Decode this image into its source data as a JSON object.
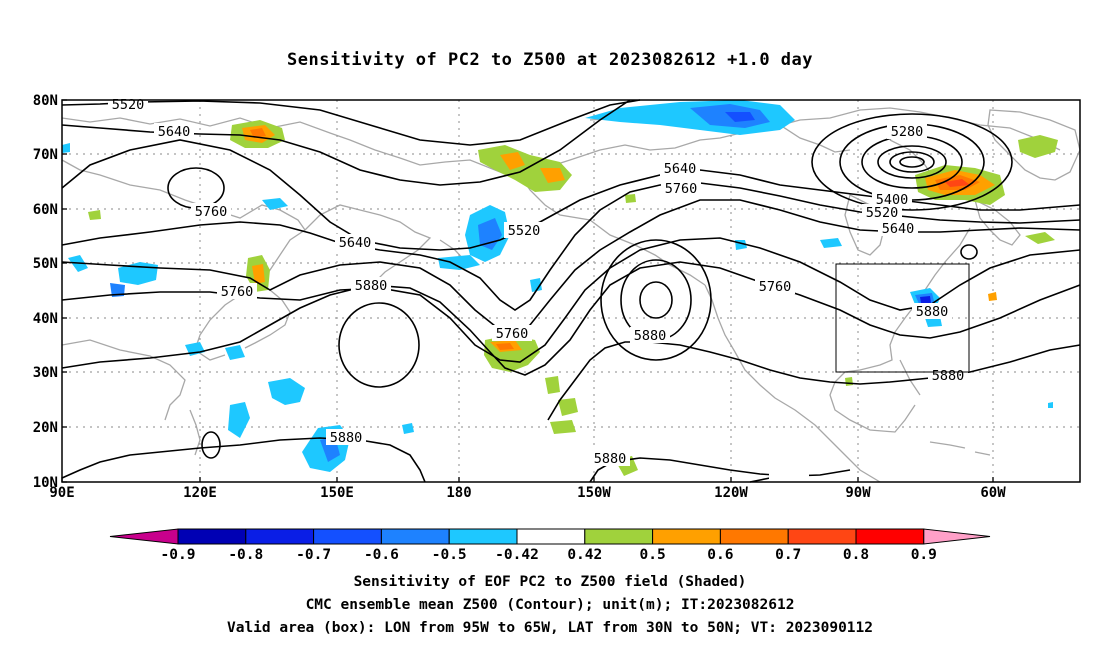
{
  "title": "Sensitivity of PC2 to Z500 at 2023082612 +1.0 day",
  "axes": {
    "lat_labels": [
      "80N",
      "70N",
      "60N",
      "50N",
      "40N",
      "30N",
      "20N",
      "10N"
    ],
    "lon_labels": [
      "90E",
      "120E",
      "150E",
      "180",
      "150W",
      "120W",
      "90W",
      "60W"
    ]
  },
  "contour_labels": [
    "5520",
    "5640",
    "5760",
    "5640",
    "5520",
    "5280",
    "5640",
    "5760",
    "5400",
    "5520",
    "5640",
    "5760",
    "5880",
    "5760",
    "5880",
    "5760",
    "5880",
    "5880",
    "5880",
    "5880"
  ],
  "colorbar": {
    "colors": [
      "#c8008c",
      "#0000b4",
      "#0a1ee6",
      "#1450ff",
      "#1e82ff",
      "#1ec8ff",
      "#ffffff",
      "#a0d23c",
      "#ffa000",
      "#ff7800",
      "#ff4614",
      "#ff0000",
      "#ffa0c8"
    ],
    "labels": [
      "-0.9",
      "-0.8",
      "-0.7",
      "-0.6",
      "-0.5",
      "-0.42",
      "0.42",
      "0.5",
      "0.6",
      "0.7",
      "0.8",
      "0.9"
    ]
  },
  "captions": {
    "line1": "Sensitivity of EOF PC2 to Z500 field (Shaded)",
    "line2": "CMC ensemble mean Z500 (Contour); unit(m); IT:2023082612",
    "line3": "Valid area (box): LON from 95W to 65W, LAT from 30N to 50N; VT: 2023090112"
  },
  "colors": {
    "contour": "#000000",
    "coast": "#a8a8a8",
    "grid": "#a0a0a0",
    "box": "#000000"
  }
}
